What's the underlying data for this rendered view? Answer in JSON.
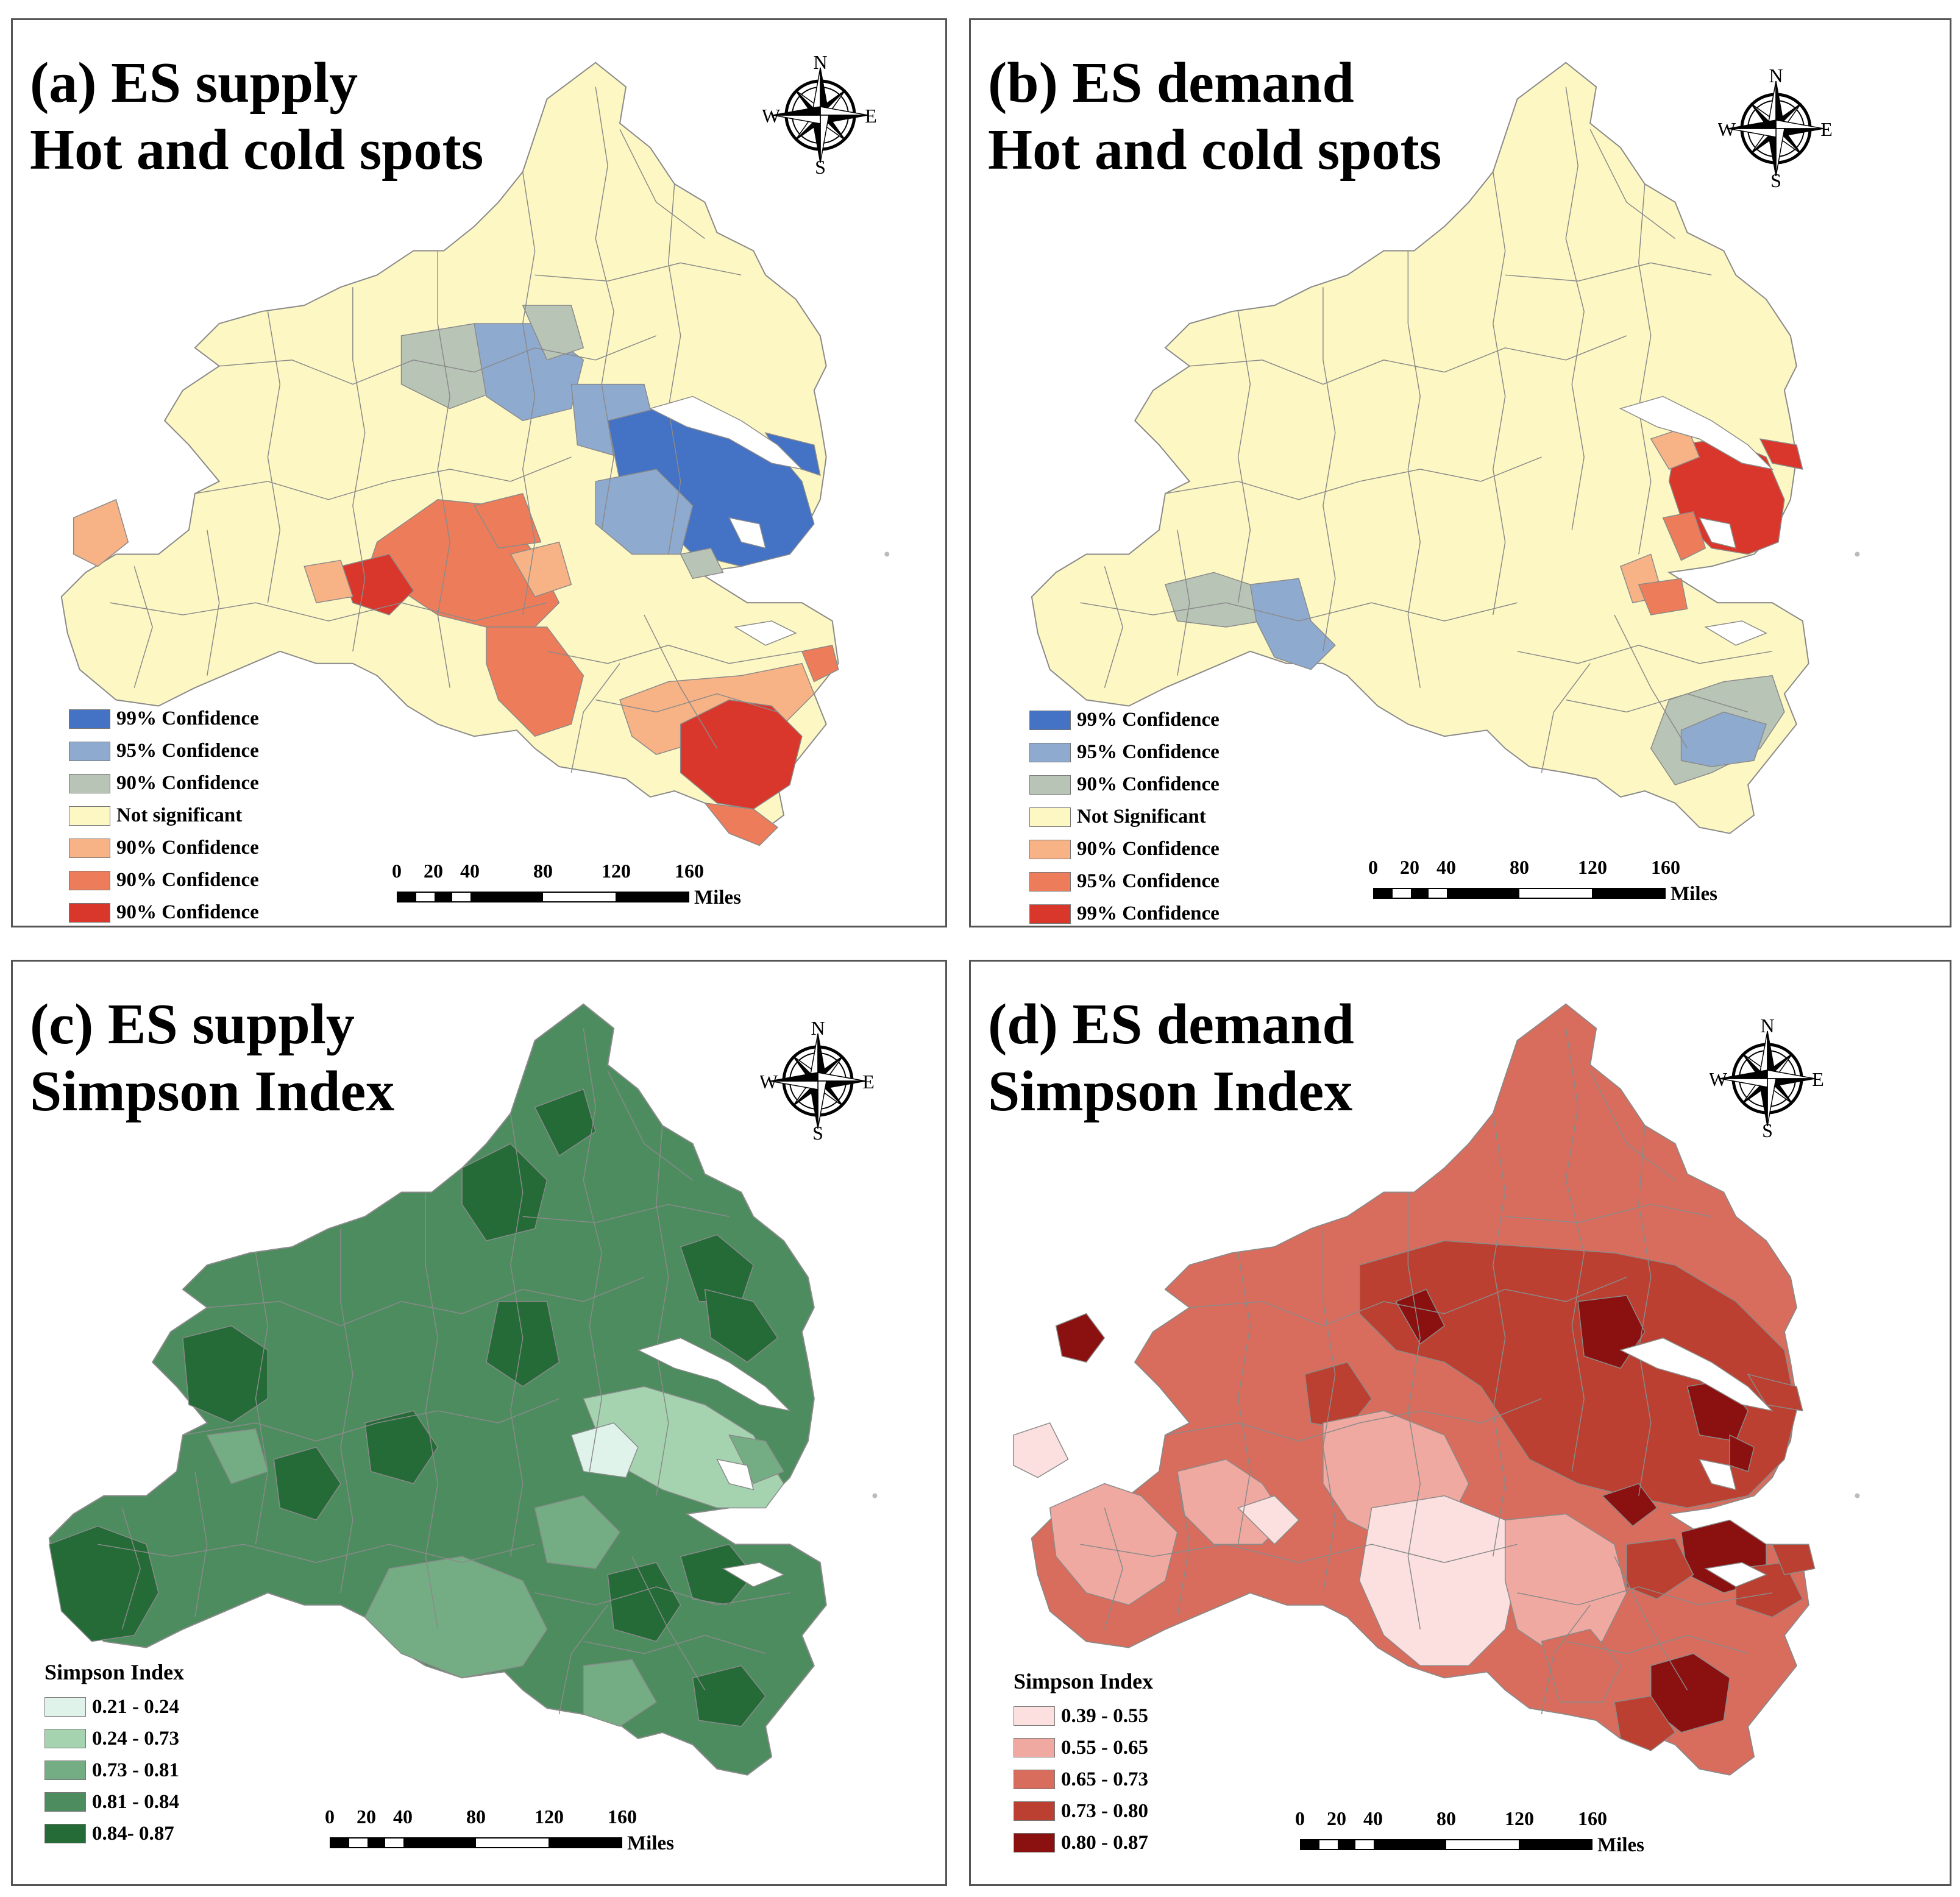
{
  "colors": {
    "hot_cold": [
      "#4472c4",
      "#8faacf",
      "#b8c4b6",
      "#fdf8c3",
      "#f7b386",
      "#ed7d5a",
      "#d9372c"
    ],
    "simpson_supply": [
      "#dff3ea",
      "#a5d3b0",
      "#74ad84",
      "#4d8c5f",
      "#246b37"
    ],
    "simpson_demand": [
      "#fbe0df",
      "#efa9a1",
      "#d86c5d",
      "#bb4031",
      "#8b1010"
    ],
    "boundary": "#8a8a8a"
  },
  "compass": {
    "n": "N",
    "e": "E",
    "s": "S",
    "w": "W",
    "icon": "compass-rose-icon"
  },
  "scale": {
    "ticks": [
      "0",
      "20",
      "40",
      "80",
      "120",
      "160"
    ],
    "units": "Miles"
  },
  "panels": {
    "a": {
      "title_line1": "(a) ES supply",
      "title_line2": "Hot and cold spots",
      "legend": [
        "99% Confidence",
        "95% Confidence",
        "90% Confidence",
        "Not significant",
        "90% Confidence",
        "90% Confidence",
        "90% Confidence"
      ]
    },
    "b": {
      "title_line1": "(b) ES demand",
      "title_line2": "Hot and cold spots",
      "legend": [
        "99% Confidence",
        "95% Confidence",
        "90% Confidence",
        "Not Significant",
        "90% Confidence",
        "95% Confidence",
        "99% Confidence"
      ]
    },
    "c": {
      "title_line1": "(c) ES supply",
      "title_line2": "Simpson Index",
      "legend_title": "Simpson Index",
      "legend": [
        "0.21 - 0.24",
        "0.24 - 0.73",
        "0.73 - 0.81",
        "0.81 - 0.84",
        "0.84- 0.87"
      ]
    },
    "d": {
      "title_line1": "(d) ES demand",
      "title_line2": "Simpson Index",
      "legend_title": "Simpson Index",
      "legend": [
        "0.39 - 0.55",
        "0.55 - 0.65",
        "0.65 - 0.73",
        "0.73 - 0.80",
        "0.80 - 0.87"
      ]
    }
  }
}
